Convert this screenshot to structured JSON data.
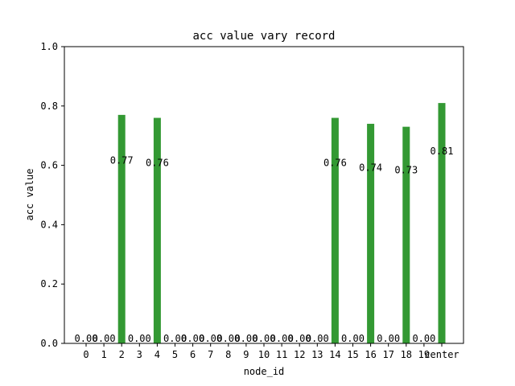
{
  "chart_data": {
    "type": "bar",
    "title": "acc value vary record",
    "xlabel": "node_id",
    "ylabel": "acc value",
    "ylim": [
      0,
      1.0
    ],
    "yticks": [
      0.0,
      0.2,
      0.4,
      0.6,
      0.8,
      1.0
    ],
    "ytick_labels": [
      "0.0",
      "0.2",
      "0.4",
      "0.6",
      "0.8",
      "1.0"
    ],
    "categories": [
      "0",
      "1",
      "2",
      "3",
      "4",
      "5",
      "6",
      "7",
      "8",
      "9",
      "10",
      "11",
      "12",
      "13",
      "14",
      "15",
      "16",
      "17",
      "18",
      "19",
      "center"
    ],
    "values": [
      0.0,
      0.0,
      0.77,
      0.0,
      0.76,
      0.0,
      0.0,
      0.0,
      0.0,
      0.0,
      0.0,
      0.0,
      0.0,
      0.0,
      0.76,
      0.0,
      0.74,
      0.0,
      0.73,
      0.0,
      0.81
    ],
    "value_labels": [
      "0.00",
      "0.00",
      "0.77",
      "0.00",
      "0.76",
      "0.00",
      "0.00",
      "0.00",
      "0.00",
      "0.00",
      "0.00",
      "0.00",
      "0.00",
      "0.00",
      "0.76",
      "0.00",
      "0.74",
      "0.00",
      "0.73",
      "0.00",
      "0.81"
    ],
    "bar_color": "#339933",
    "grid": false,
    "legend": "none"
  }
}
